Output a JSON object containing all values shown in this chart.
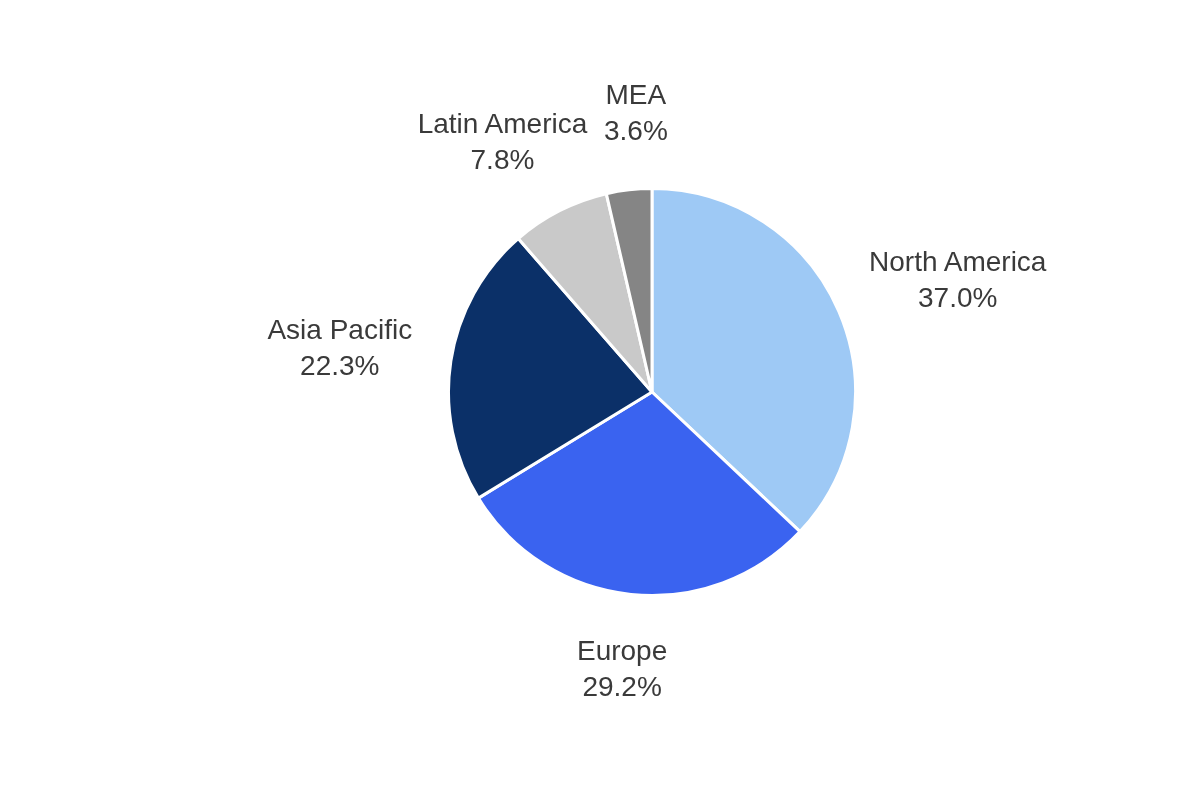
{
  "chart_data": {
    "type": "pie",
    "categories": [
      "North America",
      "Europe",
      "Asia Pacific",
      "Latin America",
      "MEA"
    ],
    "values": [
      37.0,
      29.2,
      22.3,
      7.8,
      3.6
    ],
    "colors": [
      "#9ec9f5",
      "#3a63f0",
      "#0b3068",
      "#c9c9c9",
      "#858585"
    ],
    "value_labels": [
      "37.0%",
      "29.2%",
      "22.3%",
      "7.8%",
      "3.6%"
    ],
    "legend": false
  }
}
